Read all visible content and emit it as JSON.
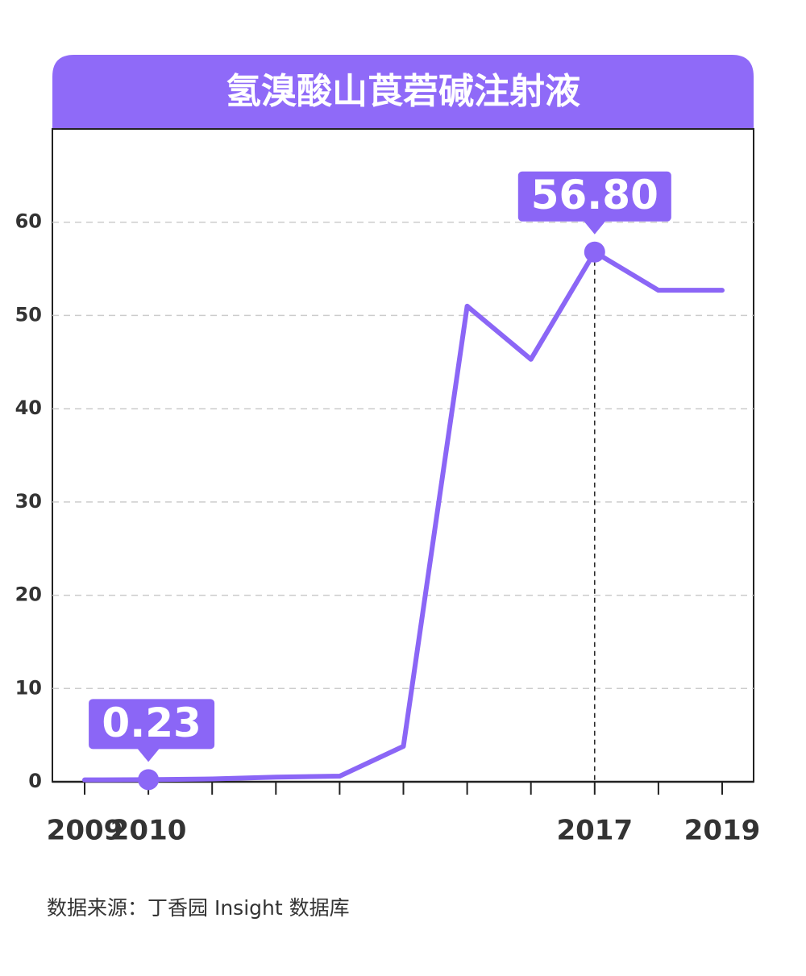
{
  "chart_data": {
    "type": "line",
    "title": "氢溴酸山莨菪碱注射液",
    "categories": [
      "2009",
      "2010",
      null,
      null,
      null,
      null,
      null,
      null,
      "2017",
      null,
      "2019"
    ],
    "series": [
      {
        "name": "氢溴酸山莨菪碱注射液",
        "color": "#8b66f6",
        "values": [
          0.2,
          0.23,
          0.3,
          0.5,
          0.6,
          3.8,
          51,
          45.3,
          56.8,
          52.7,
          52.7
        ],
        "value_labels": [
          null,
          "0.23",
          null,
          null,
          null,
          null,
          null,
          null,
          "56.80",
          null,
          null
        ]
      }
    ],
    "ylim": [
      0,
      70
    ],
    "yticks": [
      0,
      10,
      20,
      30,
      40,
      50,
      60
    ],
    "grid": true,
    "source": "数据来源：丁香园 Insight 数据库"
  }
}
